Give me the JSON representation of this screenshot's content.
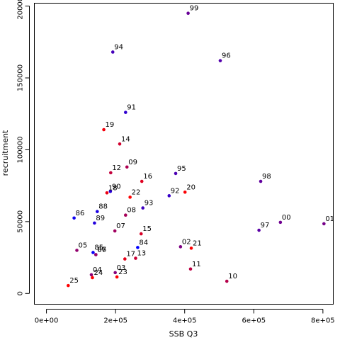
{
  "chart_data": {
    "type": "scatter",
    "title": "",
    "xlabel": "SSB Q3",
    "ylabel": "recruitment",
    "xlim": [
      -35000,
      830000
    ],
    "ylim": [
      -7500,
      202000
    ],
    "x_ticks": [
      {
        "value": 0,
        "label": "0e+00"
      },
      {
        "value": 200000,
        "label": "2e+05"
      },
      {
        "value": 400000,
        "label": "4e+05"
      },
      {
        "value": 600000,
        "label": "6e+05"
      },
      {
        "value": 800000,
        "label": "8e+05"
      }
    ],
    "y_ticks": [
      {
        "value": 0,
        "label": "0"
      },
      {
        "value": 50000,
        "label": "50000"
      },
      {
        "value": 100000,
        "label": "100000"
      },
      {
        "value": 150000,
        "label": "150000"
      },
      {
        "value": 200000,
        "label": "200000"
      }
    ],
    "grid": false,
    "colors": {
      "early": "#0000ff",
      "late": "#ff0000"
    },
    "points": [
      {
        "label": "86",
        "x": 80000,
        "y": 52500,
        "color": "#0e00f1"
      },
      {
        "label": "87",
        "x": 143000,
        "y": 27000,
        "color": "#1400eb"
      },
      {
        "label": "88",
        "x": 147000,
        "y": 57000,
        "color": "#1b00e4"
      },
      {
        "label": "89",
        "x": 139000,
        "y": 49000,
        "color": "#2200dd"
      },
      {
        "label": "90",
        "x": 185000,
        "y": 71000,
        "color": "#2900d6"
      },
      {
        "label": "91",
        "x": 229000,
        "y": 126000,
        "color": "#3000cf"
      },
      {
        "label": "92",
        "x": 355000,
        "y": 68000,
        "color": "#3700c8"
      },
      {
        "label": "93",
        "x": 279000,
        "y": 59500,
        "color": "#3e00c1"
      },
      {
        "label": "94",
        "x": 192000,
        "y": 168000,
        "color": "#4500ba"
      },
      {
        "label": "95",
        "x": 374000,
        "y": 83500,
        "color": "#4c00b3"
      },
      {
        "label": "96",
        "x": 503000,
        "y": 162000,
        "color": "#5300ac"
      },
      {
        "label": "97",
        "x": 615000,
        "y": 44000,
        "color": "#5a00a5"
      },
      {
        "label": "98",
        "x": 620000,
        "y": 78000,
        "color": "#61009e"
      },
      {
        "label": "99",
        "x": 410000,
        "y": 195000,
        "color": "#680097"
      },
      {
        "label": "00",
        "x": 677000,
        "y": 49500,
        "color": "#6f0090"
      },
      {
        "label": "01",
        "x": 803000,
        "y": 48500,
        "color": "#760089"
      },
      {
        "label": "02",
        "x": 388000,
        "y": 32500,
        "color": "#7d0082"
      },
      {
        "label": "03",
        "x": 199000,
        "y": 14500,
        "color": "#84007b"
      },
      {
        "label": "04",
        "x": 130000,
        "y": 13000,
        "color": "#8b0074"
      },
      {
        "label": "05",
        "x": 88000,
        "y": 30000,
        "color": "#92006d"
      },
      {
        "label": "06",
        "x": 143000,
        "y": 27000,
        "color": "#990066"
      },
      {
        "label": "07",
        "x": 198000,
        "y": 43500,
        "color": "#a0005f"
      },
      {
        "label": "08",
        "x": 229000,
        "y": 54500,
        "color": "#a70058"
      },
      {
        "label": "09",
        "x": 233000,
        "y": 88000,
        "color": "#ae0051"
      },
      {
        "label": "10",
        "x": 522000,
        "y": 8500,
        "color": "#b5004a"
      },
      {
        "label": "11",
        "x": 417000,
        "y": 17000,
        "color": "#bc0043"
      },
      {
        "label": "12",
        "x": 186000,
        "y": 84000,
        "color": "#c3003c"
      },
      {
        "label": "13",
        "x": 258000,
        "y": 24500,
        "color": "#ca0035"
      },
      {
        "label": "14",
        "x": 212000,
        "y": 104000,
        "color": "#d1002e"
      },
      {
        "label": "15",
        "x": 274000,
        "y": 41500,
        "color": "#d80027"
      },
      {
        "label": "16",
        "x": 276000,
        "y": 78000,
        "color": "#df0020"
      },
      {
        "label": "17",
        "x": 227000,
        "y": 24000,
        "color": "#e60019"
      },
      {
        "label": "18",
        "x": 175000,
        "y": 70000,
        "color": "#ed0012"
      },
      {
        "label": "19",
        "x": 166000,
        "y": 114000,
        "color": "#f4000b"
      },
      {
        "label": "20",
        "x": 401000,
        "y": 70500,
        "color": "#fb0004"
      },
      {
        "label": "21",
        "x": 419000,
        "y": 31500,
        "color": "#ff0000"
      },
      {
        "label": "22",
        "x": 242000,
        "y": 67000,
        "color": "#ff0000"
      },
      {
        "label": "23",
        "x": 204000,
        "y": 11500,
        "color": "#ff0000"
      },
      {
        "label": "24",
        "x": 133000,
        "y": 11000,
        "color": "#ff0000"
      },
      {
        "label": "25",
        "x": 63000,
        "y": 5500,
        "color": "#ff0000"
      },
      {
        "label": "84",
        "x": 264000,
        "y": 32000,
        "color": "#0000ff"
      },
      {
        "label": "85",
        "x": 135000,
        "y": 28500,
        "color": "#0700f8"
      }
    ]
  }
}
